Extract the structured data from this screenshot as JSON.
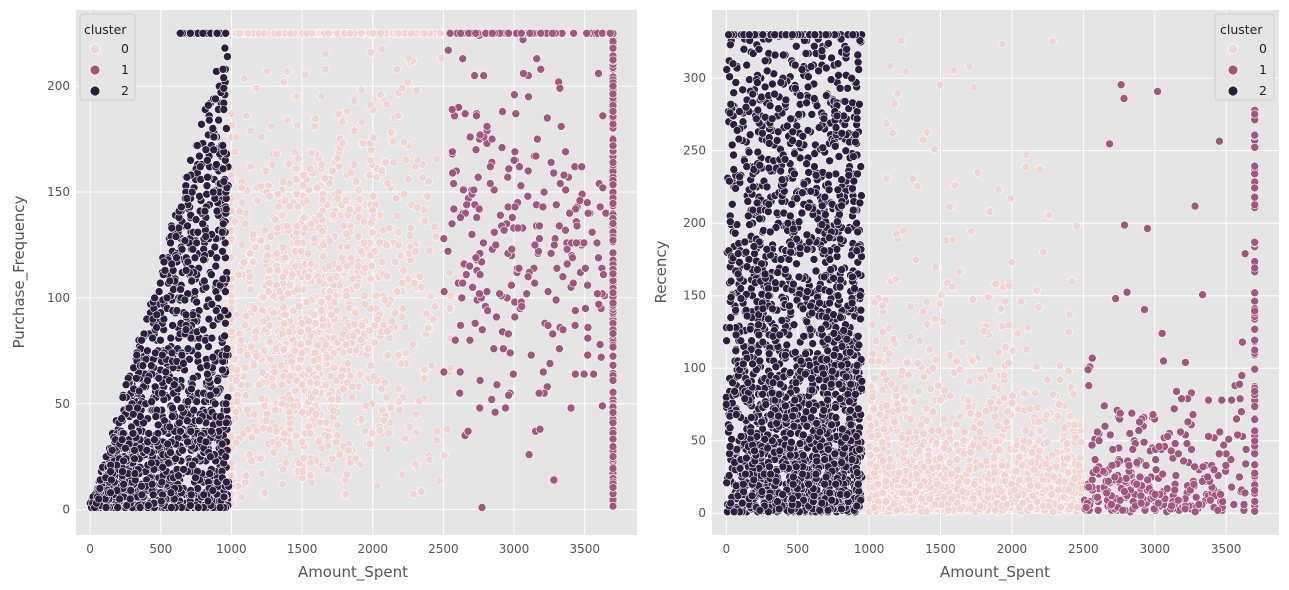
{
  "legend_title": "cluster",
  "cluster_colors": {
    "0": "#efd4d1",
    "1": "#a0567e",
    "2": "#2d1e3e"
  },
  "chart_data": [
    {
      "type": "scatter",
      "title": "",
      "xlabel": "Amount_Spent",
      "ylabel": "Purchase_Frequency",
      "xlim": [
        -100,
        3870
      ],
      "ylim": [
        -12,
        236
      ],
      "xticks": [
        0,
        500,
        1000,
        1500,
        2000,
        2500,
        3000,
        3500
      ],
      "yticks": [
        0,
        50,
        100,
        150,
        200
      ],
      "grid": true,
      "legend": {
        "title": "cluster",
        "placement": "top-left",
        "entries": [
          "0",
          "1",
          "2"
        ]
      },
      "series": [
        {
          "name": "0",
          "description": "Amount_Spent ~1000-2550, Purchase_Frequency spread 0-225, dense around 1100-2000 and 20-130, capped band at 225"
        },
        {
          "name": "1",
          "description": "Amount_Spent ~2500-3700, Purchase_Frequency 0-225, vertical column at ~3700 and capped band at 225"
        },
        {
          "name": "2",
          "description": "Amount_Spent ~0-1000, Purchase_Frequency 0-225 forming a triangular wedge rising with spend"
        }
      ]
    },
    {
      "type": "scatter",
      "title": "",
      "xlabel": "Amount_Spent",
      "ylabel": "Recency",
      "xlim": [
        -100,
        3870
      ],
      "ylim": [
        -15,
        347
      ],
      "xticks": [
        0,
        500,
        1000,
        1500,
        2000,
        2500,
        3000,
        3500
      ],
      "yticks": [
        0,
        50,
        100,
        150,
        200,
        250,
        300
      ],
      "grid": true,
      "legend": {
        "title": "cluster",
        "placement": "top-right",
        "entries": [
          "0",
          "1",
          "2"
        ]
      },
      "series": [
        {
          "name": "0",
          "description": "Amount_Spent ~1000-2500, Recency mostly 0-150 dense near 0-50, sparse up to 330"
        },
        {
          "name": "1",
          "description": "Amount_Spent ~2500-3700, Recency mostly 0-100, vertical column at ~3700 up to 330"
        },
        {
          "name": "2",
          "description": "Amount_Spent ~0-950, Recency 0-330 densely filled with capped band at 330"
        }
      ]
    }
  ]
}
